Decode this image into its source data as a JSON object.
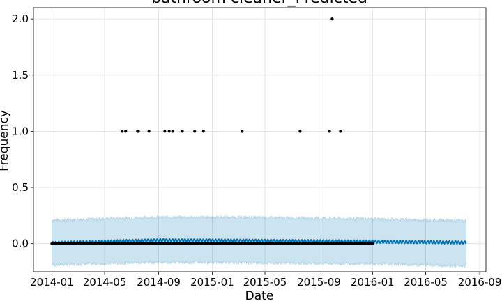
{
  "chart_data": {
    "type": "scatter",
    "title": "bathroom cleaner_Predicted",
    "xlabel": "Date",
    "ylabel": "Frequency",
    "grid": true,
    "xlim": [
      "2014-01-01",
      "2016-08-01"
    ],
    "ylim": [
      -0.25,
      2.1
    ],
    "x_ticks": [
      "2014-01",
      "2014-05",
      "2014-09",
      "2015-01",
      "2015-05",
      "2015-09",
      "2016-01",
      "2016-05",
      "2016-09"
    ],
    "y_ticks": [
      0.0,
      0.5,
      1.0,
      1.5,
      2.0
    ],
    "y_tick_labels": [
      "0.0",
      "0.5",
      "1.0",
      "1.5",
      "2.0"
    ],
    "observed": {
      "baseline_range": [
        "2014-01-01",
        "2016-01-01"
      ],
      "baseline_value": 0,
      "points": [
        {
          "x": "2014-06-10",
          "y": 1
        },
        {
          "x": "2014-06-18",
          "y": 1
        },
        {
          "x": "2014-07-15",
          "y": 1
        },
        {
          "x": "2014-07-17",
          "y": 1
        },
        {
          "x": "2014-08-10",
          "y": 1
        },
        {
          "x": "2014-09-15",
          "y": 1
        },
        {
          "x": "2014-09-25",
          "y": 1
        },
        {
          "x": "2014-10-03",
          "y": 1
        },
        {
          "x": "2014-10-25",
          "y": 1
        },
        {
          "x": "2014-11-22",
          "y": 1
        },
        {
          "x": "2014-12-12",
          "y": 1
        },
        {
          "x": "2015-03-10",
          "y": 1
        },
        {
          "x": "2015-07-20",
          "y": 1
        },
        {
          "x": "2015-09-25",
          "y": 1
        },
        {
          "x": "2015-10-01",
          "y": 2
        },
        {
          "x": "2015-10-20",
          "y": 1
        }
      ]
    },
    "forecast": {
      "range": [
        "2014-01-01",
        "2016-08-01"
      ],
      "trend": [
        {
          "x": "2014-01-01",
          "y": 0.005
        },
        {
          "x": "2014-09-01",
          "y": 0.03
        },
        {
          "x": "2015-01-01",
          "y": 0.028
        },
        {
          "x": "2016-01-01",
          "y": 0.018
        },
        {
          "x": "2016-08-01",
          "y": 0.01
        }
      ],
      "weekly_amplitude": 0.012,
      "interval": [
        {
          "x": "2014-01-01",
          "lower": -0.19,
          "upper": 0.21
        },
        {
          "x": "2014-09-01",
          "lower": -0.165,
          "upper": 0.235
        },
        {
          "x": "2015-03-01",
          "lower": -0.17,
          "upper": 0.235
        },
        {
          "x": "2016-01-01",
          "lower": -0.18,
          "upper": 0.22
        },
        {
          "x": "2016-08-01",
          "lower": -0.2,
          "upper": 0.205
        }
      ]
    },
    "colors": {
      "forecast_line": "#0072B2",
      "interval_fill": "#0072B2",
      "observed_points": "#000000",
      "grid": "#dddddd"
    }
  }
}
